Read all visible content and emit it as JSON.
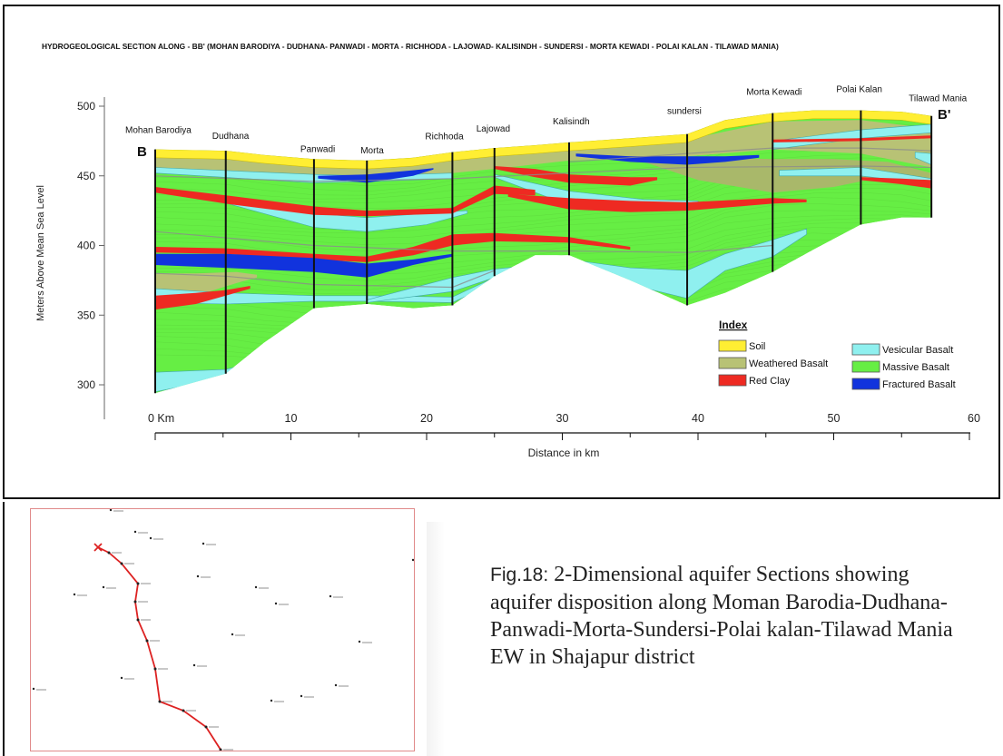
{
  "section": {
    "title": "HYDROGEOLOGICAL SECTION ALONG - BB' (MOHAN BARODIYA - DUDHANA- PANWADI - MORTA - RICHHODA - LAJOWAD- KALISINDH - SUNDERSI - MORTA KEWADI - POLAI KALAN - TILAWAD MANIA)",
    "ylabel": "Meters Above Mean Sea Level",
    "xlabel": "Distance in km",
    "y_ticks": [
      "500",
      "450",
      "400",
      "350",
      "300"
    ],
    "x_ticks": [
      "0 Km",
      "10",
      "20",
      "30",
      "40",
      "50",
      "60"
    ],
    "end_left": "B",
    "end_right": "B'",
    "boreholes": [
      {
        "name": "Mohan Barodiya",
        "km": 0
      },
      {
        "name": "Dudhana",
        "km": 5.2
      },
      {
        "name": "Panwadi",
        "km": 11.7
      },
      {
        "name": "Morta",
        "km": 15.6
      },
      {
        "name": "Richhoda",
        "km": 21.9
      },
      {
        "name": "Lajowad",
        "km": 25
      },
      {
        "name": "Kalisindh",
        "km": 30.5
      },
      {
        "name": "sundersi",
        "km": 39.2
      },
      {
        "name": "Morta Kewadi",
        "km": 45.5
      },
      {
        "name": "Polai Kalan",
        "km": 52
      },
      {
        "name": "Tilawad Mania",
        "km": 57.2
      }
    ],
    "index": {
      "title": "Index",
      "items": [
        {
          "label": "Soil",
          "color": "#ffee33"
        },
        {
          "label": "Weathered Basalt",
          "color": "#b8c275"
        },
        {
          "label": "Red Clay",
          "color": "#ee2a22"
        },
        {
          "label": "Vesicular Basalt",
          "color": "#8ff0ef"
        },
        {
          "label": "Massive Basalt",
          "color": "#66ee44"
        },
        {
          "label": "Fractured Basalt",
          "color": "#1133dd"
        }
      ]
    }
  },
  "map": {
    "places": [
      "Mohan Barodiya",
      "Dudhana",
      "Panwadi",
      "Morta",
      "Richhoda",
      "Lajowad",
      "Kalisindh",
      "sundersi",
      "Morta Kewadi",
      "Polai Kalan",
      "Tilawad Mania"
    ]
  },
  "caption": {
    "label": "Fig.18:",
    "text": " 2-Dimensional aquifer Sections showing aquifer disposition along Moman Barodia-Dudhana-Panwadi-Morta-Sundersi-Polai kalan-Tilawad Mania EW in Shajapur district"
  }
}
